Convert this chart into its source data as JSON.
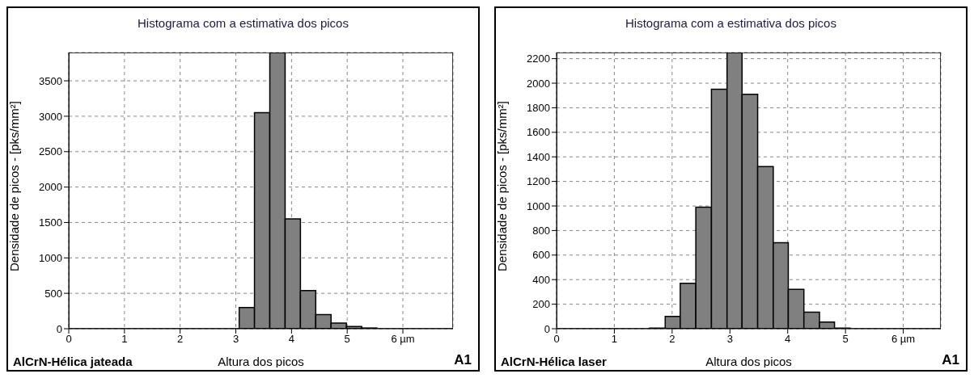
{
  "chart_data": [
    {
      "type": "histogram",
      "title": "Histograma com a estimativa dos picos",
      "xlabel": "Altura dos picos",
      "ylabel": "Densidade de picos - [pks/mm²]",
      "bins": [
        3.06,
        3.335,
        3.61,
        3.885,
        4.16,
        4.435,
        4.71,
        4.985,
        5.26,
        5.535
      ],
      "values": [
        300,
        3050,
        3900,
        1550,
        540,
        200,
        80,
        30,
        10
      ],
      "color": "#808080",
      "xlim": [
        0,
        6.9
      ],
      "xticks": [
        0,
        1,
        2,
        3,
        4,
        5,
        {
          "value": 6,
          "label": "6 µm"
        }
      ],
      "ylim": [
        0,
        3900
      ],
      "yticks": [
        0,
        500,
        1000,
        1500,
        2000,
        2500,
        3000,
        3500
      ],
      "grid": true,
      "annotations": [
        "AlCrN-Hélica jateada",
        "A1"
      ]
    },
    {
      "type": "histogram",
      "title": "Histograma com a estimativa dos picos",
      "xlabel": "Altura dos picos",
      "ylabel": "Densidade de picos - [pks/mm²]",
      "bins": [
        1.61,
        1.88,
        2.14,
        2.41,
        2.68,
        2.95,
        3.21,
        3.48,
        3.75,
        4.01,
        4.28,
        4.55,
        4.81,
        5.08
      ],
      "values": [
        5,
        100,
        370,
        990,
        1950,
        2250,
        1910,
        1320,
        700,
        320,
        135,
        55,
        5
      ],
      "color": "#808080",
      "xlim": [
        0,
        6.65
      ],
      "xticks": [
        0,
        1,
        2,
        3,
        4,
        5,
        {
          "value": 6,
          "label": "6 µm"
        }
      ],
      "ylim": [
        0,
        2250
      ],
      "yticks": [
        0,
        200,
        400,
        600,
        800,
        1000,
        1200,
        1400,
        1600,
        1800,
        2000,
        2200
      ],
      "grid": true,
      "annotations": [
        "AlCrN-Hélica laser",
        "A1"
      ]
    }
  ]
}
